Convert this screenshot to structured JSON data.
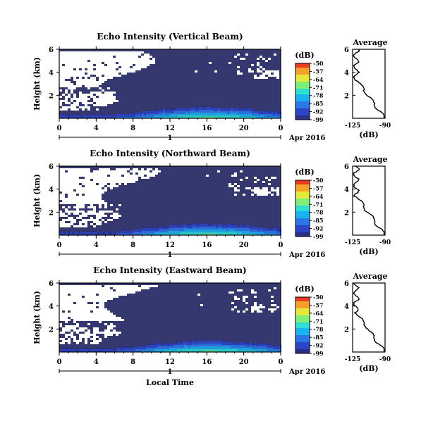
{
  "chart_data": [
    {
      "type": "heatmap",
      "title": "Echo Intensity (Vertical Beam)",
      "ylabel": "Height (km)",
      "xticks": [
        "0",
        "4",
        "8",
        "12",
        "16",
        "20",
        "0"
      ],
      "xlim": [
        0,
        24
      ],
      "yticks": [
        "2",
        "4",
        "6"
      ],
      "ylim": [
        0,
        6
      ],
      "date_label": "Apr 2016",
      "day_label": "1",
      "colorbar": {
        "label": "(dB)",
        "ticks": [
          "-50",
          "-57",
          "-64",
          "-71",
          "-78",
          "-85",
          "-92",
          "-99"
        ]
      },
      "average": {
        "title": "Average",
        "xticks": [
          "-125",
          "-90"
        ],
        "yticks": [
          "2",
          "4",
          "6"
        ],
        "xlabel": "(dB)"
      }
    },
    {
      "type": "heatmap",
      "title": "Echo Intensity (Northward Beam)",
      "ylabel": "Height (km)",
      "xticks": [
        "0",
        "4",
        "8",
        "12",
        "16",
        "20",
        "0"
      ],
      "xlim": [
        0,
        24
      ],
      "yticks": [
        "2",
        "4",
        "6"
      ],
      "ylim": [
        0,
        6
      ],
      "date_label": "Apr 2016",
      "day_label": "1",
      "colorbar": {
        "label": "(dB)",
        "ticks": [
          "-50",
          "-57",
          "-64",
          "-71",
          "-78",
          "-85",
          "-92",
          "-99"
        ]
      },
      "average": {
        "title": "Average",
        "xticks": [
          "-125",
          "-90"
        ],
        "yticks": [
          "2",
          "4",
          "6"
        ],
        "xlabel": "(dB)"
      }
    },
    {
      "type": "heatmap",
      "title": "Echo Intensity (Eastward Beam)",
      "ylabel": "Height (km)",
      "xticks": [
        "0",
        "4",
        "8",
        "12",
        "16",
        "20",
        "0"
      ],
      "xlim": [
        0,
        24
      ],
      "yticks": [
        "2",
        "4",
        "6"
      ],
      "ylim": [
        0,
        6
      ],
      "date_label": "Apr 2016",
      "day_label": "1",
      "xlabel": "Local Time",
      "colorbar": {
        "label": "(dB)",
        "ticks": [
          "-50",
          "-57",
          "-64",
          "-71",
          "-78",
          "-85",
          "-92",
          "-99"
        ]
      },
      "average": {
        "title": "Average",
        "xticks": [
          "-125",
          "-90"
        ],
        "yticks": [
          "2",
          "4",
          "6"
        ],
        "xlabel": "(dB)"
      }
    }
  ],
  "colors": {
    "background_field": "#34386e",
    "missing": "#ffffff",
    "colormap": [
      "#2a2f8a",
      "#2b44c8",
      "#2a78e8",
      "#19b4f0",
      "#2ee0d0",
      "#7ef07a",
      "#e6e83a",
      "#f7a12a",
      "#ee3a1f"
    ]
  }
}
